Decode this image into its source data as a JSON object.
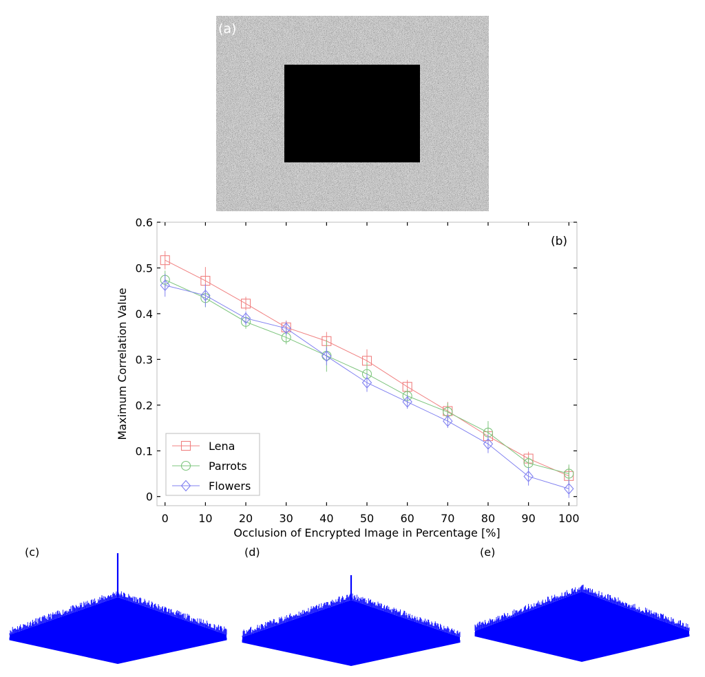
{
  "panel_labels": {
    "a": "(a)",
    "b": "(b)",
    "c": "(c)",
    "d": "(d)",
    "e": "(e)"
  },
  "chart_data": {
    "type": "line",
    "title": "",
    "xlabel": "Occlusion of Encrypted Image in Percentage [%]",
    "ylabel": "Maximum Correlation Value",
    "x": [
      0,
      10,
      20,
      30,
      40,
      50,
      60,
      70,
      80,
      90,
      100
    ],
    "xlim": [
      -2,
      102
    ],
    "ylim": [
      -0.02,
      0.6
    ],
    "xticks": [
      0,
      10,
      20,
      30,
      40,
      50,
      60,
      70,
      80,
      90,
      100
    ],
    "yticks": [
      0,
      0.1,
      0.2,
      0.3,
      0.4,
      0.5,
      0.6
    ],
    "grid": false,
    "legend_position": "bottom-left",
    "series": [
      {
        "name": "Lena",
        "color": "#f08080",
        "marker": "square",
        "values": [
          0.517,
          0.472,
          0.422,
          0.37,
          0.34,
          0.297,
          0.24,
          0.187,
          0.132,
          0.083,
          0.045
        ],
        "error": [
          0.02,
          0.03,
          0.015,
          0.015,
          0.02,
          0.025,
          0.015,
          0.02,
          0.02,
          0.015,
          0.02
        ]
      },
      {
        "name": "Parrots",
        "color": "#7cc47c",
        "marker": "circle",
        "values": [
          0.474,
          0.434,
          0.382,
          0.348,
          0.308,
          0.268,
          0.22,
          0.185,
          0.14,
          0.073,
          0.05
        ],
        "error": [
          0.02,
          0.02,
          0.015,
          0.015,
          0.035,
          0.025,
          0.015,
          0.02,
          0.025,
          0.015,
          0.02
        ]
      },
      {
        "name": "Flowers",
        "color": "#8080f0",
        "marker": "diamond",
        "values": [
          0.462,
          0.44,
          0.39,
          0.368,
          0.307,
          0.249,
          0.207,
          0.165,
          0.115,
          0.044,
          0.017
        ],
        "error": [
          0.025,
          0.025,
          0.015,
          0.015,
          0.02,
          0.02,
          0.015,
          0.015,
          0.02,
          0.02,
          0.02
        ]
      }
    ]
  },
  "surface_plots": [
    {
      "label": "(c)",
      "peak": "strong",
      "color": "#0000ff"
    },
    {
      "label": "(d)",
      "peak": "medium",
      "color": "#0000ff"
    },
    {
      "label": "(e)",
      "peak": "none",
      "color": "#0000ff"
    }
  ]
}
